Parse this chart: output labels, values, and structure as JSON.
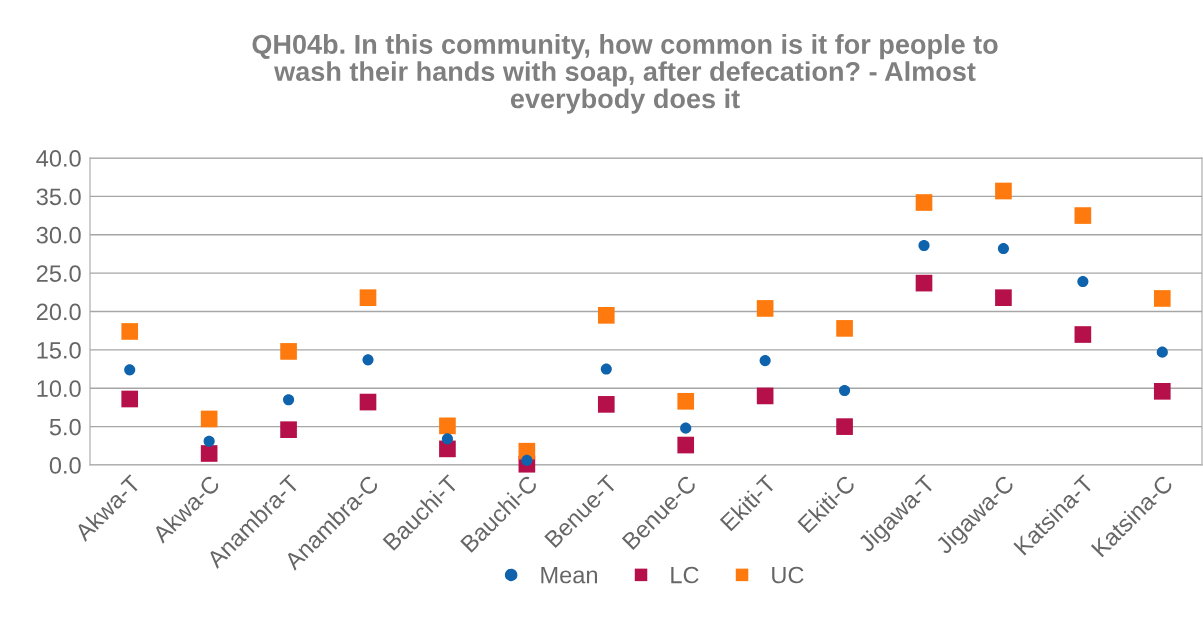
{
  "chart_data": {
    "type": "scatter",
    "title": "QH04b. In this community, how common is it for people to wash their hands with soap, after defecation? - Almost everybody does it",
    "categories": [
      "Akwa-T",
      "Akwa-C",
      "Anambra-T",
      "Anambra-C",
      "Bauchi-T",
      "Bauchi-C",
      "Benue-T",
      "Benue-C",
      "Ekiti-T",
      "Ekiti-C",
      "Jigawa-T",
      "Jigawa-C",
      "Katsina-T",
      "Katsina-C"
    ],
    "series": [
      {
        "name": "Mean",
        "color": "#0f63ad",
        "marker": "circle",
        "values": [
          12.4,
          3.1,
          8.5,
          13.7,
          3.4,
          0.6,
          12.5,
          4.8,
          13.6,
          9.7,
          28.6,
          28.2,
          23.9,
          14.7
        ]
      },
      {
        "name": "LC",
        "color": "#b5104a",
        "marker": "square",
        "values": [
          8.6,
          1.5,
          4.6,
          8.2,
          2.1,
          0.1,
          7.9,
          2.6,
          9.0,
          5.0,
          23.7,
          21.8,
          17.0,
          9.6
        ]
      },
      {
        "name": "UC",
        "color": "#ff7a0e",
        "marker": "square",
        "values": [
          17.4,
          6.0,
          14.8,
          21.8,
          5.1,
          1.8,
          19.5,
          8.3,
          20.4,
          17.8,
          34.2,
          35.7,
          32.5,
          21.7
        ]
      }
    ],
    "ylim": [
      0,
      40
    ],
    "yticks": [
      {
        "value": 0,
        "label": "0.0"
      },
      {
        "value": 5,
        "label": "5.0"
      },
      {
        "value": 10,
        "label": "10.0"
      },
      {
        "value": 15,
        "label": "15.0"
      },
      {
        "value": 20,
        "label": "20.0"
      },
      {
        "value": 25,
        "label": "25.0"
      },
      {
        "value": 30,
        "label": "30.0"
      },
      {
        "value": 35,
        "label": "35.0"
      },
      {
        "value": 40,
        "label": "40.0"
      }
    ],
    "grid": "y",
    "legend": "bottom"
  }
}
